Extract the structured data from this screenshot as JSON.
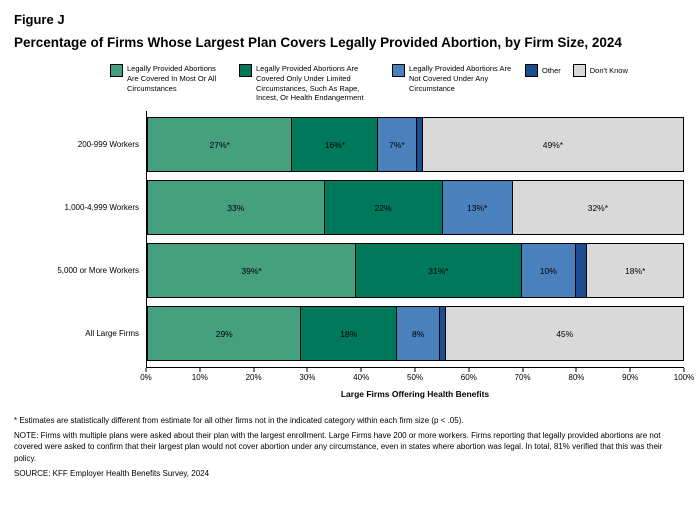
{
  "title": {
    "figure_label": "Figure J",
    "main": "Percentage of Firms Whose Largest Plan Covers Legally Provided Abortion, by Firm Size, 2024"
  },
  "legend": [
    {
      "label": "Legally Provided Abortions Are Covered In Most Or All Circumstances",
      "color": "#44A07F"
    },
    {
      "label": "Legally Provided Abortions Are Covered Only Under Limited Circumstances, Such As Rape, Incest, Or Health Endangerment",
      "color": "#00785A"
    },
    {
      "label": "Legally Provided Abortions Are Not Covered Under Any Circumstance",
      "color": "#4A80BC"
    },
    {
      "label": "Other",
      "color": "#1A4E8E"
    },
    {
      "label": "Don't Know",
      "color": "#D9D9D9"
    }
  ],
  "chart_data": {
    "type": "bar",
    "orientation": "horizontal",
    "stacked": true,
    "title": "Percentage of Firms Whose Largest Plan Covers Legally Provided Abortion, by Firm Size, 2024",
    "categories": [
      "200-999 Workers",
      "1,000-4,999 Workers",
      "5,000 or More Workers",
      "All Large Firms"
    ],
    "series": [
      {
        "name": "Legally Provided Abortions Are Covered In Most Or All Circumstances",
        "color": "#44A07F",
        "values": [
          27,
          33,
          39,
          29
        ],
        "labels": [
          "27%*",
          "33%",
          "39%*",
          "29%"
        ]
      },
      {
        "name": "Legally Provided Abortions Are Covered Only Under Limited Circumstances, Such As Rape, Incest, Or Health Endangerment",
        "color": "#00785A",
        "values": [
          16,
          22,
          31,
          18
        ],
        "labels": [
          "16%*",
          "22%",
          "31%*",
          "18%"
        ]
      },
      {
        "name": "Legally Provided Abortions Are Not Covered Under Any Circumstance",
        "color": "#4A80BC",
        "values": [
          7,
          13,
          10,
          8
        ],
        "labels": [
          "7%*",
          "13%*",
          "10%",
          "8%"
        ]
      },
      {
        "name": "Other",
        "color": "#1A4E8E",
        "values": [
          1,
          0,
          2,
          1
        ],
        "labels": [
          "",
          "",
          "",
          ""
        ]
      },
      {
        "name": "Don't Know",
        "color": "#D9D9D9",
        "values": [
          49,
          32,
          18,
          45
        ],
        "labels": [
          "49%*",
          "32%*",
          "18%*",
          "45%"
        ]
      }
    ],
    "xlabel": "Large Firms Offering Health Benefits",
    "xlim": [
      0,
      100
    ],
    "xticks": [
      "0%",
      "10%",
      "20%",
      "30%",
      "40%",
      "50%",
      "60%",
      "70%",
      "80%",
      "90%",
      "100%"
    ],
    "grid": false,
    "legend_position": "top"
  },
  "footnotes": {
    "significance": "* Estimates are statistically different from estimate for all other firms not in the indicated category within each firm size (p < .05).",
    "note": "NOTE: Firms with multiple plans were asked about their plan with the largest enrollment.  Large Firms have 200 or more workers.  Firms reporting that legally provided abortions are not covered were asked to confirm that their largest plan would not cover abortion under any circumstance, even in states where abortion was legal. In total, 81% verified that this was their policy.",
    "source": "SOURCE: KFF Employer Health Benefits Survey, 2024"
  }
}
